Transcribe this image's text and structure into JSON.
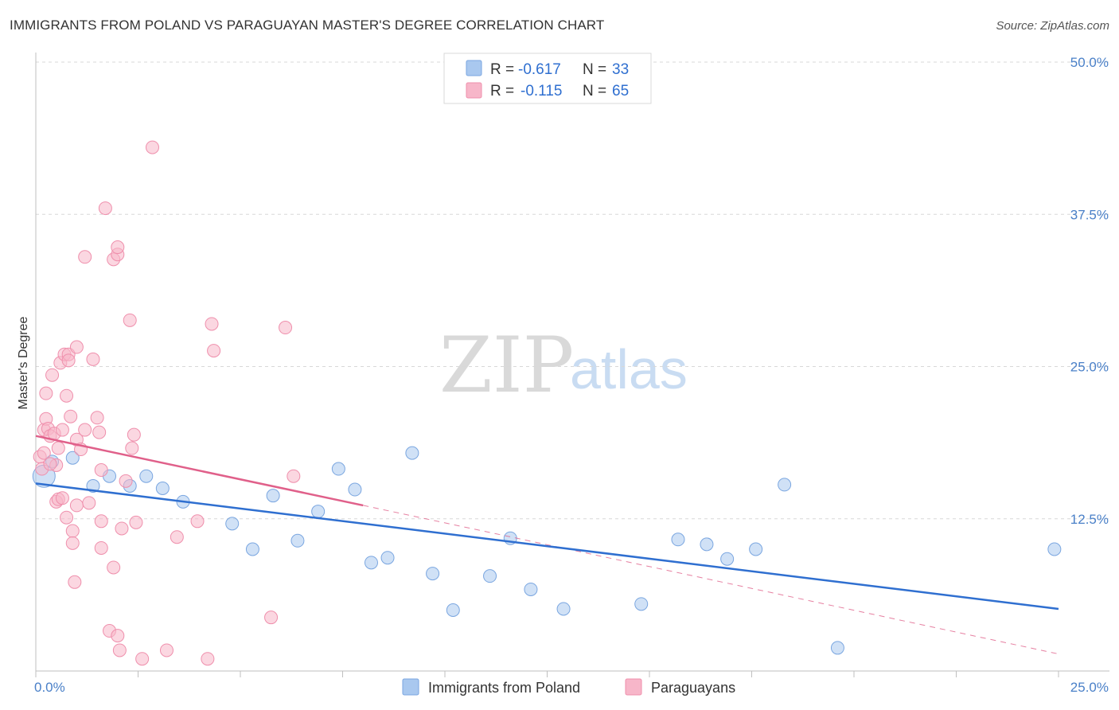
{
  "header": {
    "title": "IMMIGRANTS FROM POLAND VS PARAGUAYAN MASTER'S DEGREE CORRELATION CHART",
    "source": "Source: ZipAtlas.com"
  },
  "watermark": {
    "zip": "ZIP",
    "atlas": "atlas"
  },
  "colors": {
    "poland_fill": "#a9c8ef",
    "poland_stroke": "#7aa6e0",
    "poland_line": "#2f6fd0",
    "paraguay_fill": "#f7b6c9",
    "paraguay_stroke": "#ef8fac",
    "paraguay_line": "#e0608a",
    "grid": "#d8d8d8",
    "axis_text": "#4a80c8"
  },
  "legend": {
    "rows": [
      {
        "r_label": "R =",
        "r_value": "-0.617",
        "n_label": "N =",
        "n_value": "33",
        "series": "poland"
      },
      {
        "r_label": "R =",
        "r_value": "-0.115",
        "n_label": "N =",
        "n_value": "65",
        "series": "paraguay"
      }
    ]
  },
  "bottom_legend": [
    {
      "label": "Immigrants from Poland",
      "series": "poland"
    },
    {
      "label": "Paraguayans",
      "series": "paraguay"
    }
  ],
  "chart_data": {
    "type": "scatter",
    "title": "IMMIGRANTS FROM POLAND VS PARAGUAYAN MASTER'S DEGREE CORRELATION CHART",
    "xlabel": "",
    "ylabel": "Master's Degree",
    "xlim": [
      0,
      25
    ],
    "ylim": [
      0,
      50
    ],
    "x_tick_labels": [
      "0.0%",
      "25.0%"
    ],
    "y_ticks": [
      12.5,
      25.0,
      37.5,
      50.0
    ],
    "y_tick_labels": [
      "12.5%",
      "25.0%",
      "37.5%",
      "50.0%"
    ],
    "grid": true,
    "series": [
      {
        "name": "Immigrants from Poland",
        "key": "poland",
        "R": -0.617,
        "N": 33,
        "trend": {
          "x": [
            0,
            25
          ],
          "y": [
            15.4,
            5.1
          ]
        },
        "points": [
          {
            "x": 0.2,
            "y": 16.0,
            "big": true
          },
          {
            "x": 0.4,
            "y": 17.2
          },
          {
            "x": 0.9,
            "y": 17.5
          },
          {
            "x": 1.4,
            "y": 15.2
          },
          {
            "x": 1.8,
            "y": 16.0
          },
          {
            "x": 2.3,
            "y": 15.2
          },
          {
            "x": 2.7,
            "y": 16.0
          },
          {
            "x": 3.1,
            "y": 15.0
          },
          {
            "x": 3.6,
            "y": 13.9
          },
          {
            "x": 4.8,
            "y": 12.1
          },
          {
            "x": 5.3,
            "y": 10.0
          },
          {
            "x": 5.8,
            "y": 14.4
          },
          {
            "x": 6.4,
            "y": 10.7
          },
          {
            "x": 6.9,
            "y": 13.1
          },
          {
            "x": 7.4,
            "y": 16.6
          },
          {
            "x": 7.8,
            "y": 14.9
          },
          {
            "x": 8.2,
            "y": 8.9
          },
          {
            "x": 8.6,
            "y": 9.3
          },
          {
            "x": 9.2,
            "y": 17.9
          },
          {
            "x": 9.7,
            "y": 8.0
          },
          {
            "x": 10.2,
            "y": 5.0
          },
          {
            "x": 11.1,
            "y": 7.8
          },
          {
            "x": 11.6,
            "y": 10.9
          },
          {
            "x": 12.1,
            "y": 6.7
          },
          {
            "x": 12.9,
            "y": 5.1
          },
          {
            "x": 14.8,
            "y": 5.5
          },
          {
            "x": 15.7,
            "y": 10.8
          },
          {
            "x": 16.4,
            "y": 10.4
          },
          {
            "x": 16.9,
            "y": 9.2
          },
          {
            "x": 17.6,
            "y": 10.0
          },
          {
            "x": 18.3,
            "y": 15.3
          },
          {
            "x": 19.6,
            "y": 1.9
          },
          {
            "x": 24.9,
            "y": 10.0
          }
        ]
      },
      {
        "name": "Paraguayans",
        "key": "paraguay",
        "R": -0.115,
        "N": 65,
        "trend": {
          "x": [
            0,
            8.0
          ],
          "y": [
            19.3,
            13.6
          ]
        },
        "trend_dashed": {
          "x": [
            8.0,
            25
          ],
          "y": [
            13.6,
            1.4
          ]
        },
        "points": [
          {
            "x": 0.1,
            "y": 17.6
          },
          {
            "x": 0.15,
            "y": 16.6
          },
          {
            "x": 0.2,
            "y": 19.8
          },
          {
            "x": 0.25,
            "y": 22.8
          },
          {
            "x": 0.25,
            "y": 20.7
          },
          {
            "x": 0.3,
            "y": 19.9
          },
          {
            "x": 0.35,
            "y": 19.3
          },
          {
            "x": 0.4,
            "y": 24.3
          },
          {
            "x": 0.45,
            "y": 19.5
          },
          {
            "x": 0.5,
            "y": 13.9
          },
          {
            "x": 0.5,
            "y": 16.9
          },
          {
            "x": 0.55,
            "y": 18.3
          },
          {
            "x": 0.55,
            "y": 14.1
          },
          {
            "x": 0.6,
            "y": 25.3
          },
          {
            "x": 0.65,
            "y": 19.8
          },
          {
            "x": 0.7,
            "y": 26.0
          },
          {
            "x": 0.75,
            "y": 22.6
          },
          {
            "x": 0.75,
            "y": 12.6
          },
          {
            "x": 0.8,
            "y": 26.0
          },
          {
            "x": 0.8,
            "y": 25.5
          },
          {
            "x": 0.85,
            "y": 20.9
          },
          {
            "x": 0.9,
            "y": 11.5
          },
          {
            "x": 0.9,
            "y": 10.5
          },
          {
            "x": 0.95,
            "y": 7.3
          },
          {
            "x": 1.0,
            "y": 19.0
          },
          {
            "x": 1.0,
            "y": 26.6
          },
          {
            "x": 1.0,
            "y": 13.6
          },
          {
            "x": 1.1,
            "y": 18.2
          },
          {
            "x": 1.2,
            "y": 34.0
          },
          {
            "x": 1.2,
            "y": 19.8
          },
          {
            "x": 1.3,
            "y": 13.8
          },
          {
            "x": 1.4,
            "y": 25.6
          },
          {
            "x": 1.5,
            "y": 20.8
          },
          {
            "x": 1.6,
            "y": 16.5
          },
          {
            "x": 1.6,
            "y": 12.3
          },
          {
            "x": 1.6,
            "y": 10.1
          },
          {
            "x": 1.7,
            "y": 38.0
          },
          {
            "x": 1.8,
            "y": 3.3
          },
          {
            "x": 1.9,
            "y": 33.8
          },
          {
            "x": 1.9,
            "y": 8.5
          },
          {
            "x": 2.0,
            "y": 34.2
          },
          {
            "x": 2.0,
            "y": 34.8
          },
          {
            "x": 2.0,
            "y": 2.9
          },
          {
            "x": 2.05,
            "y": 1.7
          },
          {
            "x": 2.1,
            "y": 11.7
          },
          {
            "x": 2.2,
            "y": 15.6
          },
          {
            "x": 2.3,
            "y": 28.8
          },
          {
            "x": 2.35,
            "y": 18.3
          },
          {
            "x": 2.4,
            "y": 19.4
          },
          {
            "x": 2.45,
            "y": 12.2
          },
          {
            "x": 2.6,
            "y": 1.0
          },
          {
            "x": 2.85,
            "y": 43.0
          },
          {
            "x": 3.2,
            "y": 1.7
          },
          {
            "x": 3.45,
            "y": 11.0
          },
          {
            "x": 3.95,
            "y": 12.3
          },
          {
            "x": 4.2,
            "y": 1.0
          },
          {
            "x": 4.3,
            "y": 28.5
          },
          {
            "x": 4.35,
            "y": 26.3
          },
          {
            "x": 5.75,
            "y": 4.4
          },
          {
            "x": 6.1,
            "y": 28.2
          },
          {
            "x": 6.3,
            "y": 16.0
          },
          {
            "x": 0.2,
            "y": 17.9
          },
          {
            "x": 0.35,
            "y": 17.0
          },
          {
            "x": 1.55,
            "y": 19.6
          },
          {
            "x": 0.65,
            "y": 14.2
          }
        ]
      }
    ]
  }
}
